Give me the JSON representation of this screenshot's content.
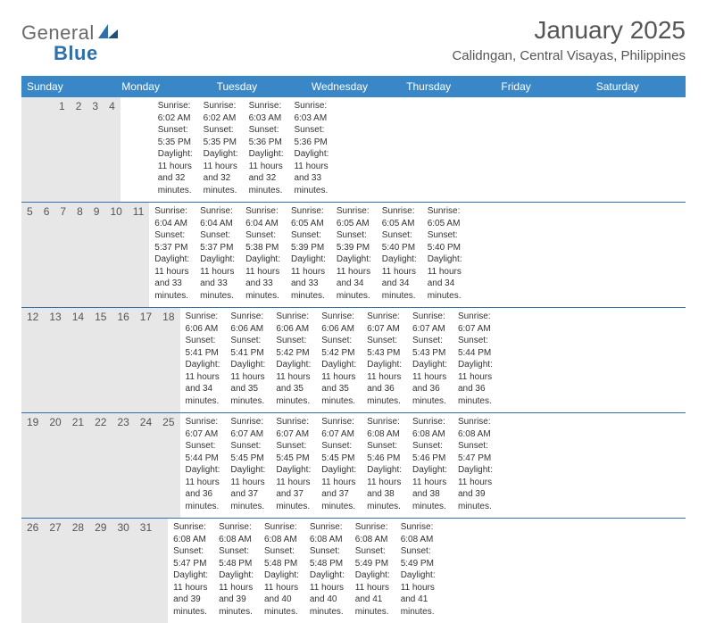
{
  "brand": {
    "name_a": "General",
    "name_b": "Blue"
  },
  "title": "January 2025",
  "location": "Calidngan, Central Visayas, Philippines",
  "colors": {
    "header_bg": "#3a87c7",
    "header_text": "#ffffff",
    "daynum_bg": "#e7e7e7",
    "rule": "#2f6fab",
    "text": "#333333",
    "title_text": "#555555"
  },
  "layout": {
    "columns": 7,
    "first_weekday": "Sunday",
    "first_day_column_index": 3
  },
  "weekdays": [
    "Sunday",
    "Monday",
    "Tuesday",
    "Wednesday",
    "Thursday",
    "Friday",
    "Saturday"
  ],
  "fonts": {
    "title_pt": 28,
    "location_pt": 15,
    "weekday_pt": 12,
    "daynum_pt": 12,
    "cell_pt": 10
  },
  "days": [
    {
      "n": 1,
      "sunrise": "6:02 AM",
      "sunset": "5:35 PM",
      "daylight_h": 11,
      "daylight_m": 32
    },
    {
      "n": 2,
      "sunrise": "6:02 AM",
      "sunset": "5:35 PM",
      "daylight_h": 11,
      "daylight_m": 32
    },
    {
      "n": 3,
      "sunrise": "6:03 AM",
      "sunset": "5:36 PM",
      "daylight_h": 11,
      "daylight_m": 32
    },
    {
      "n": 4,
      "sunrise": "6:03 AM",
      "sunset": "5:36 PM",
      "daylight_h": 11,
      "daylight_m": 33
    },
    {
      "n": 5,
      "sunrise": "6:04 AM",
      "sunset": "5:37 PM",
      "daylight_h": 11,
      "daylight_m": 33
    },
    {
      "n": 6,
      "sunrise": "6:04 AM",
      "sunset": "5:37 PM",
      "daylight_h": 11,
      "daylight_m": 33
    },
    {
      "n": 7,
      "sunrise": "6:04 AM",
      "sunset": "5:38 PM",
      "daylight_h": 11,
      "daylight_m": 33
    },
    {
      "n": 8,
      "sunrise": "6:05 AM",
      "sunset": "5:39 PM",
      "daylight_h": 11,
      "daylight_m": 33
    },
    {
      "n": 9,
      "sunrise": "6:05 AM",
      "sunset": "5:39 PM",
      "daylight_h": 11,
      "daylight_m": 34
    },
    {
      "n": 10,
      "sunrise": "6:05 AM",
      "sunset": "5:40 PM",
      "daylight_h": 11,
      "daylight_m": 34
    },
    {
      "n": 11,
      "sunrise": "6:05 AM",
      "sunset": "5:40 PM",
      "daylight_h": 11,
      "daylight_m": 34
    },
    {
      "n": 12,
      "sunrise": "6:06 AM",
      "sunset": "5:41 PM",
      "daylight_h": 11,
      "daylight_m": 34
    },
    {
      "n": 13,
      "sunrise": "6:06 AM",
      "sunset": "5:41 PM",
      "daylight_h": 11,
      "daylight_m": 35
    },
    {
      "n": 14,
      "sunrise": "6:06 AM",
      "sunset": "5:42 PM",
      "daylight_h": 11,
      "daylight_m": 35
    },
    {
      "n": 15,
      "sunrise": "6:06 AM",
      "sunset": "5:42 PM",
      "daylight_h": 11,
      "daylight_m": 35
    },
    {
      "n": 16,
      "sunrise": "6:07 AM",
      "sunset": "5:43 PM",
      "daylight_h": 11,
      "daylight_m": 36
    },
    {
      "n": 17,
      "sunrise": "6:07 AM",
      "sunset": "5:43 PM",
      "daylight_h": 11,
      "daylight_m": 36
    },
    {
      "n": 18,
      "sunrise": "6:07 AM",
      "sunset": "5:44 PM",
      "daylight_h": 11,
      "daylight_m": 36
    },
    {
      "n": 19,
      "sunrise": "6:07 AM",
      "sunset": "5:44 PM",
      "daylight_h": 11,
      "daylight_m": 36
    },
    {
      "n": 20,
      "sunrise": "6:07 AM",
      "sunset": "5:45 PM",
      "daylight_h": 11,
      "daylight_m": 37
    },
    {
      "n": 21,
      "sunrise": "6:07 AM",
      "sunset": "5:45 PM",
      "daylight_h": 11,
      "daylight_m": 37
    },
    {
      "n": 22,
      "sunrise": "6:07 AM",
      "sunset": "5:45 PM",
      "daylight_h": 11,
      "daylight_m": 37
    },
    {
      "n": 23,
      "sunrise": "6:08 AM",
      "sunset": "5:46 PM",
      "daylight_h": 11,
      "daylight_m": 38
    },
    {
      "n": 24,
      "sunrise": "6:08 AM",
      "sunset": "5:46 PM",
      "daylight_h": 11,
      "daylight_m": 38
    },
    {
      "n": 25,
      "sunrise": "6:08 AM",
      "sunset": "5:47 PM",
      "daylight_h": 11,
      "daylight_m": 39
    },
    {
      "n": 26,
      "sunrise": "6:08 AM",
      "sunset": "5:47 PM",
      "daylight_h": 11,
      "daylight_m": 39
    },
    {
      "n": 27,
      "sunrise": "6:08 AM",
      "sunset": "5:48 PM",
      "daylight_h": 11,
      "daylight_m": 39
    },
    {
      "n": 28,
      "sunrise": "6:08 AM",
      "sunset": "5:48 PM",
      "daylight_h": 11,
      "daylight_m": 40
    },
    {
      "n": 29,
      "sunrise": "6:08 AM",
      "sunset": "5:48 PM",
      "daylight_h": 11,
      "daylight_m": 40
    },
    {
      "n": 30,
      "sunrise": "6:08 AM",
      "sunset": "5:49 PM",
      "daylight_h": 11,
      "daylight_m": 41
    },
    {
      "n": 31,
      "sunrise": "6:08 AM",
      "sunset": "5:49 PM",
      "daylight_h": 11,
      "daylight_m": 41
    }
  ],
  "labels": {
    "sunrise": "Sunrise:",
    "sunset": "Sunset:",
    "daylight_prefix": "Daylight:",
    "hours_word": "hours",
    "and_word": "and",
    "minutes_word": "minutes."
  }
}
